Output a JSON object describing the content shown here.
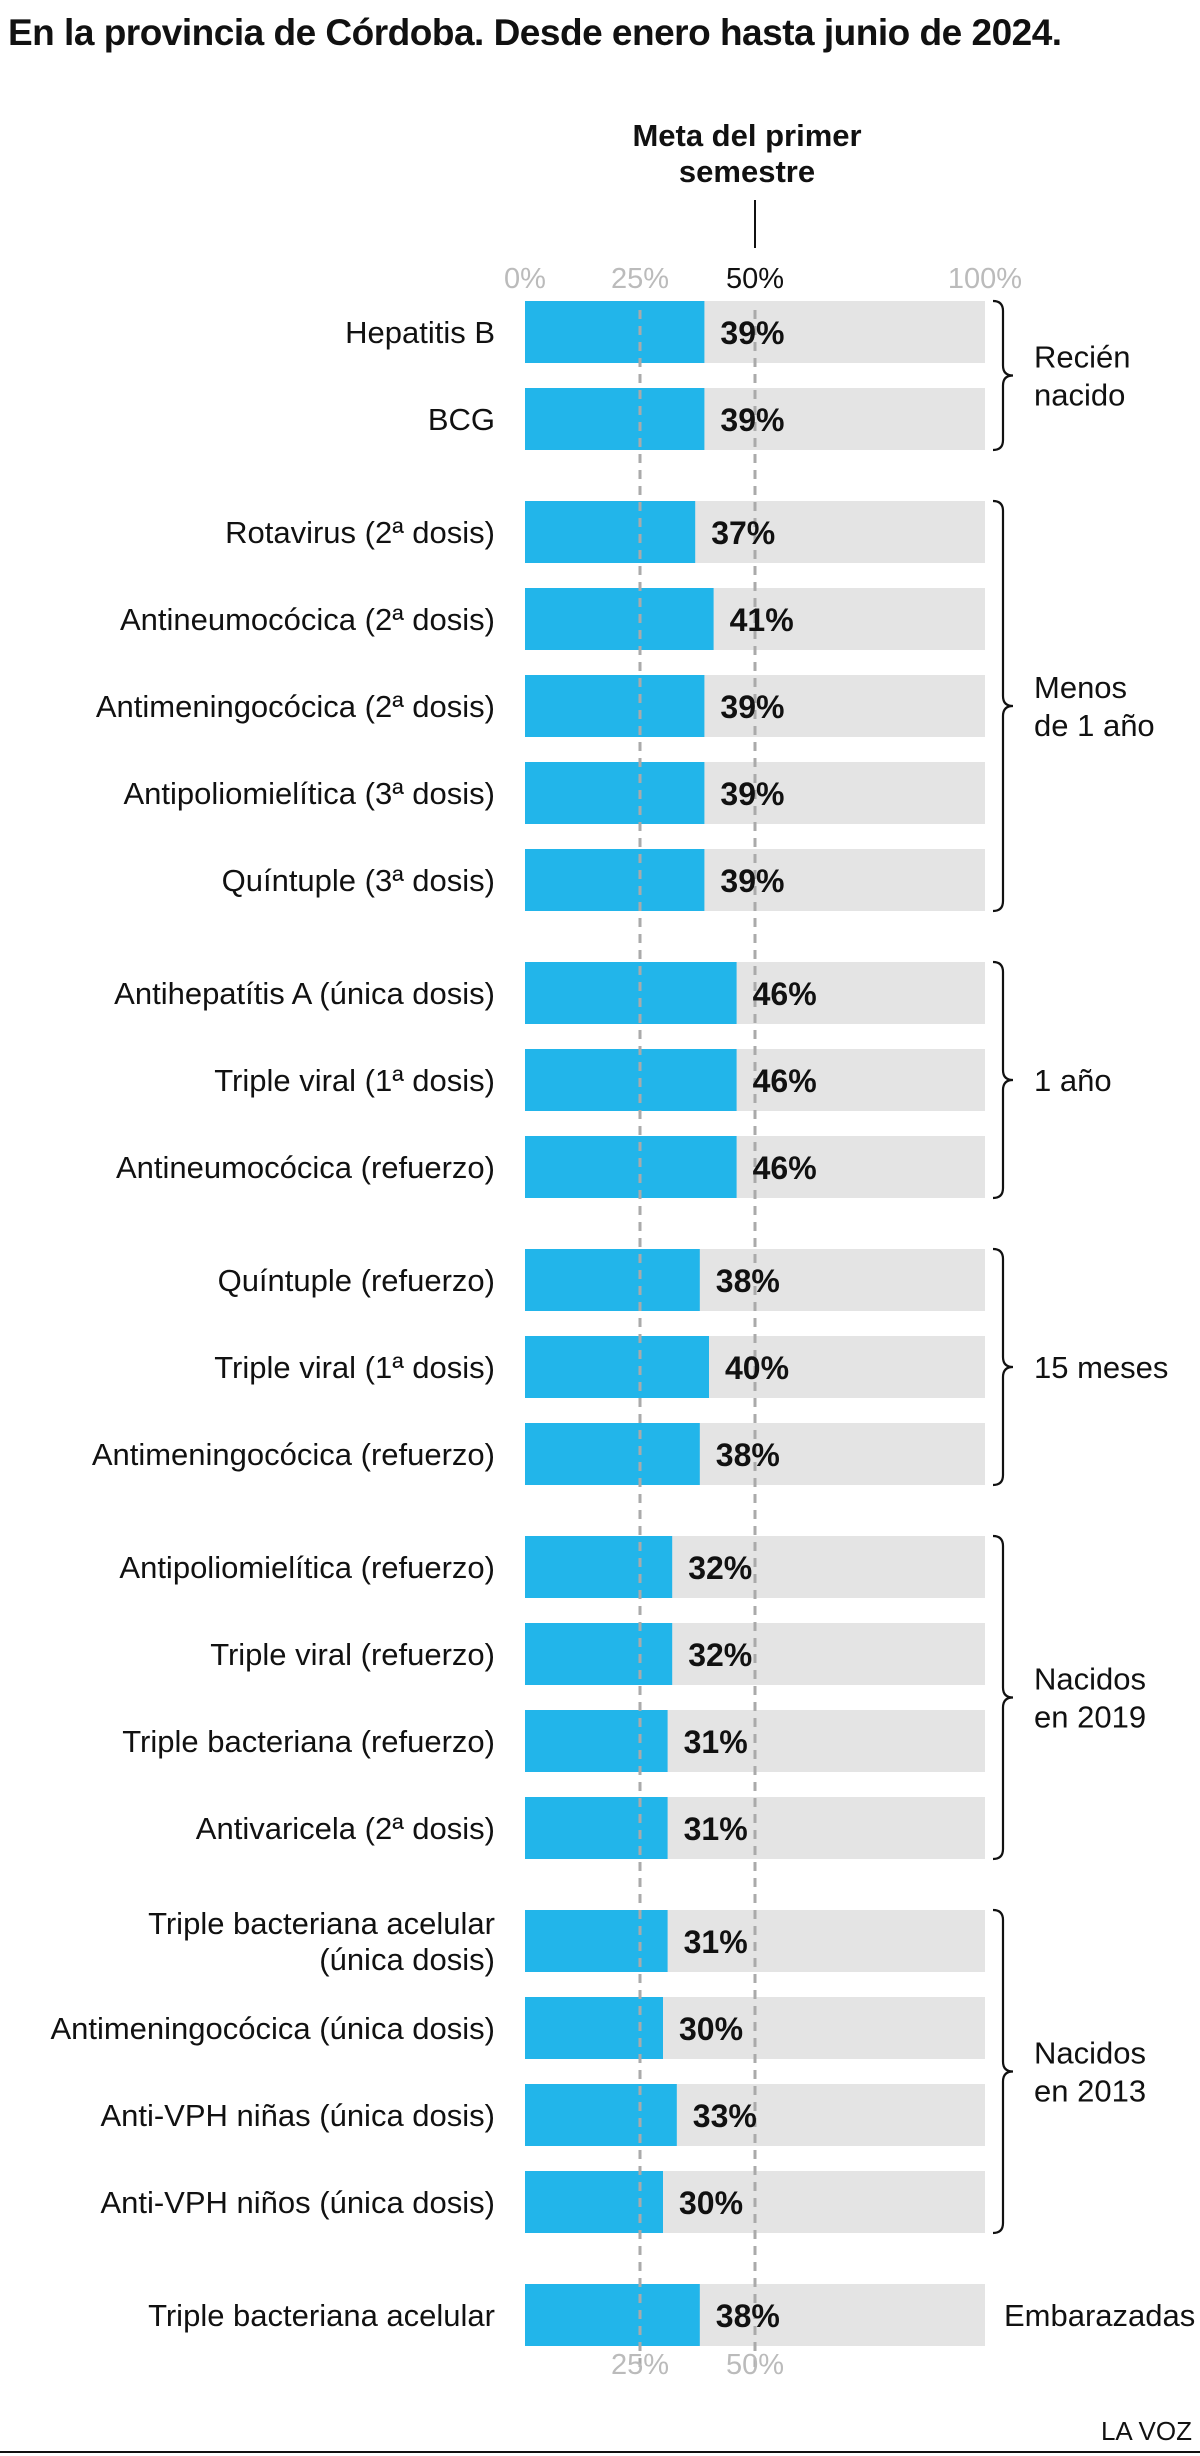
{
  "title": "En la provincia de Córdoba. Desde enero hasta junio de 2024.",
  "source": "LA VOZ",
  "chart_data": {
    "type": "bar",
    "orientation": "horizontal",
    "xlim": [
      0,
      100
    ],
    "unit": "%",
    "top_ticks": [
      {
        "value": 0,
        "label": "0%"
      },
      {
        "value": 25,
        "label": "25%"
      },
      {
        "value": 50,
        "label": "50%"
      },
      {
        "value": 100,
        "label": "100%"
      }
    ],
    "bottom_ticks": [
      {
        "value": 25,
        "label": "25%"
      },
      {
        "value": 50,
        "label": "50%"
      }
    ],
    "reference_lines": [
      25,
      50
    ],
    "goal": {
      "value": 50,
      "label_lines": [
        "Meta del primer",
        "semestre"
      ]
    },
    "colors": {
      "bar": "#22b5ea",
      "track": "#e4e4e4",
      "reference": "#aaaaaa",
      "tick_muted": "#bbbbbb",
      "tick_main": "#111111"
    },
    "groups": [
      {
        "label_lines": [
          "Recién",
          "nacido"
        ],
        "bracket": true,
        "items": [
          {
            "label_lines": [
              "Hepatitis B"
            ],
            "value": 39,
            "value_label": "39%"
          },
          {
            "label_lines": [
              "BCG"
            ],
            "value": 39,
            "value_label": "39%"
          }
        ]
      },
      {
        "label_lines": [
          "Menos",
          "de 1 año"
        ],
        "bracket": true,
        "items": [
          {
            "label_lines": [
              "Rotavirus (2ª dosis)"
            ],
            "value": 37,
            "value_label": "37%"
          },
          {
            "label_lines": [
              "Antineumocócica (2ª dosis)"
            ],
            "value": 41,
            "value_label": "41%"
          },
          {
            "label_lines": [
              "Antimeningocócica (2ª dosis)"
            ],
            "value": 39,
            "value_label": "39%"
          },
          {
            "label_lines": [
              "Antipoliomielítica (3ª dosis)"
            ],
            "value": 39,
            "value_label": "39%"
          },
          {
            "label_lines": [
              "Quíntuple (3ª dosis)"
            ],
            "value": 39,
            "value_label": "39%"
          }
        ]
      },
      {
        "label_lines": [
          "1 año"
        ],
        "bracket": true,
        "items": [
          {
            "label_lines": [
              "Antihepatítis A (única dosis)"
            ],
            "value": 46,
            "value_label": "46%"
          },
          {
            "label_lines": [
              "Triple viral (1ª dosis)"
            ],
            "value": 46,
            "value_label": "46%"
          },
          {
            "label_lines": [
              "Antineumocócica (refuerzo)"
            ],
            "value": 46,
            "value_label": "46%"
          }
        ]
      },
      {
        "label_lines": [
          "15 meses"
        ],
        "bracket": true,
        "items": [
          {
            "label_lines": [
              "Quíntuple (refuerzo)"
            ],
            "value": 38,
            "value_label": "38%"
          },
          {
            "label_lines": [
              "Triple viral (1ª dosis)"
            ],
            "value": 40,
            "value_label": "40%"
          },
          {
            "label_lines": [
              "Antimeningocócica (refuerzo)"
            ],
            "value": 38,
            "value_label": "38%"
          }
        ]
      },
      {
        "label_lines": [
          "Nacidos",
          "en 2019"
        ],
        "bracket": true,
        "items": [
          {
            "label_lines": [
              "Antipoliomielítica (refuerzo)"
            ],
            "value": 32,
            "value_label": "32%"
          },
          {
            "label_lines": [
              "Triple viral (refuerzo)"
            ],
            "value": 32,
            "value_label": "32%"
          },
          {
            "label_lines": [
              "Triple bacteriana (refuerzo)"
            ],
            "value": 31,
            "value_label": "31%"
          },
          {
            "label_lines": [
              "Antivaricela (2ª dosis)"
            ],
            "value": 31,
            "value_label": "31%"
          }
        ]
      },
      {
        "label_lines": [
          "Nacidos",
          "en 2013"
        ],
        "bracket": true,
        "items": [
          {
            "label_lines": [
              "Triple bacteriana acelular",
              "(única dosis)"
            ],
            "value": 31,
            "value_label": "31%"
          },
          {
            "label_lines": [
              "Antimeningocócica (única dosis)"
            ],
            "value": 30,
            "value_label": "30%"
          },
          {
            "label_lines": [
              "Anti-VPH niñas (única dosis)"
            ],
            "value": 33,
            "value_label": "33%"
          },
          {
            "label_lines": [
              "Anti-VPH niños (única dosis)"
            ],
            "value": 30,
            "value_label": "30%"
          }
        ]
      },
      {
        "label_lines": [
          "Embarazadas"
        ],
        "bracket": false,
        "items": [
          {
            "label_lines": [
              "Triple bacteriana acelular"
            ],
            "value": 38,
            "value_label": "38%"
          }
        ]
      }
    ]
  }
}
